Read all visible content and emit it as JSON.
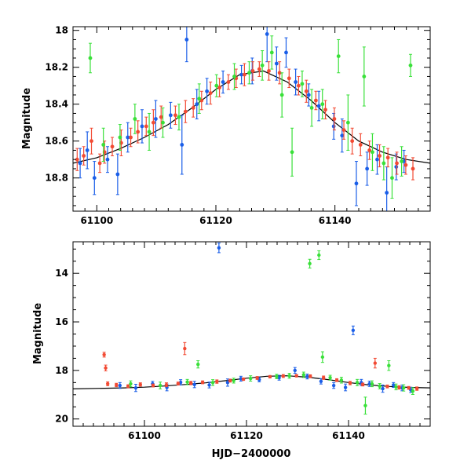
{
  "colors": {
    "blue": "#1a5ee8",
    "red": "#f24a33",
    "green": "#39e039",
    "model": "#000000"
  },
  "chart_data": [
    {
      "type": "scatter",
      "panel": "top",
      "title": "",
      "xlabel": "",
      "ylabel": "Magnitude",
      "xlim": [
        61096,
        61156
      ],
      "ylim": [
        18.98,
        17.98
      ],
      "y_inverted": true,
      "xticks": [
        61100,
        61120,
        61140
      ],
      "xtick_labels": [
        "61100",
        "61120",
        "61140"
      ],
      "yticks": [
        18,
        18.2,
        18.4,
        18.6,
        18.8
      ],
      "ytick_labels": [
        "18",
        "18.2",
        "18.4",
        "18.6",
        "18.8"
      ],
      "model_curve": {
        "x": [
          61096,
          61100,
          61104,
          61108,
          61112,
          61116,
          61120,
          61124,
          61128,
          61132,
          61136,
          61140,
          61144,
          61148,
          61152,
          61156
        ],
        "y": [
          18.72,
          18.69,
          18.64,
          18.58,
          18.51,
          18.42,
          18.32,
          18.24,
          18.22,
          18.28,
          18.38,
          18.5,
          18.6,
          18.66,
          18.7,
          18.72
        ]
      },
      "series": [
        {
          "name": "blue",
          "color_key": "blue",
          "x": [
            61097.2,
            61098.4,
            61099.6,
            61101.8,
            61103.5,
            61105.2,
            61107.6,
            61109.9,
            61112.4,
            61114.3,
            61115.1,
            61116.8,
            61118.5,
            61121.2,
            61124.3,
            61126.1,
            61128.6,
            61130.2,
            61131.8,
            61133.4,
            61135.6,
            61137.3,
            61139.8,
            61141.2,
            61143.6,
            61145.4,
            61147.1,
            61148.7,
            61150.3,
            61151.6
          ],
          "y": [
            18.72,
            18.65,
            18.8,
            18.7,
            18.78,
            18.58,
            18.52,
            18.48,
            18.46,
            18.62,
            18.05,
            18.4,
            18.33,
            18.28,
            18.24,
            18.22,
            18.02,
            18.18,
            18.12,
            18.28,
            18.35,
            18.41,
            18.52,
            18.57,
            18.83,
            18.75,
            18.7,
            18.88,
            18.74,
            18.71
          ],
          "err": [
            0.08,
            0.1,
            0.09,
            0.07,
            0.11,
            0.08,
            0.09,
            0.1,
            0.07,
            0.16,
            0.12,
            0.08,
            0.07,
            0.06,
            0.05,
            0.07,
            0.15,
            0.09,
            0.08,
            0.07,
            0.06,
            0.08,
            0.07,
            0.09,
            0.12,
            0.09,
            0.08,
            0.14,
            0.07,
            0.06
          ]
        },
        {
          "name": "red",
          "color_key": "red",
          "x": [
            61096.7,
            61097.8,
            61099.1,
            61100.5,
            61101.3,
            61102.6,
            61104.1,
            61105.7,
            61106.9,
            61108.3,
            61109.5,
            61110.8,
            61113.2,
            61114.9,
            61116.2,
            61117.6,
            61119.1,
            61120.6,
            61122.1,
            61123.4,
            61124.8,
            61126.2,
            61127.3,
            61128.9,
            61130.7,
            61132.3,
            61133.9,
            61135.2,
            61136.8,
            61138.4,
            61139.9,
            61141.5,
            61142.9,
            61144.3,
            61145.8,
            61147.5,
            61148.9,
            61150.4,
            61151.9,
            61153.1
          ],
          "y": [
            18.7,
            18.68,
            18.6,
            18.72,
            18.66,
            18.63,
            18.61,
            18.58,
            18.55,
            18.52,
            18.5,
            18.47,
            18.46,
            18.44,
            18.42,
            18.38,
            18.34,
            18.31,
            18.28,
            18.26,
            18.24,
            18.22,
            18.21,
            18.22,
            18.23,
            18.26,
            18.3,
            18.33,
            18.38,
            18.43,
            18.48,
            18.54,
            18.6,
            18.62,
            18.65,
            18.68,
            18.69,
            18.72,
            18.73,
            18.75
          ],
          "err": [
            0.06,
            0.05,
            0.07,
            0.05,
            0.06,
            0.05,
            0.07,
            0.05,
            0.06,
            0.05,
            0.07,
            0.06,
            0.05,
            0.06,
            0.05,
            0.05,
            0.06,
            0.05,
            0.04,
            0.05,
            0.06,
            0.05,
            0.04,
            0.05,
            0.06,
            0.05,
            0.05,
            0.06,
            0.05,
            0.05,
            0.06,
            0.05,
            0.07,
            0.06,
            0.05,
            0.06,
            0.05,
            0.06,
            0.05,
            0.06
          ]
        },
        {
          "name": "green",
          "color_key": "green",
          "x": [
            61098.9,
            61101.1,
            61103.9,
            61106.4,
            61108.8,
            61111.1,
            61113.8,
            61117.2,
            61120.1,
            61123.1,
            61125.6,
            61127.8,
            61129.4,
            61131.1,
            61132.8,
            61134.5,
            61136.1,
            61137.9,
            61140.6,
            61142.2,
            61144.9,
            61146.3,
            61148.2,
            61149.6,
            61151.2,
            61152.7
          ],
          "y": [
            18.15,
            18.62,
            18.58,
            18.48,
            18.55,
            18.5,
            18.47,
            18.37,
            18.3,
            18.25,
            18.23,
            18.19,
            18.12,
            18.35,
            18.66,
            18.29,
            18.42,
            18.4,
            18.14,
            18.5,
            18.25,
            18.66,
            18.72,
            18.8,
            18.71,
            18.19
          ],
          "err": [
            0.08,
            0.09,
            0.07,
            0.08,
            0.1,
            0.08,
            0.07,
            0.08,
            0.06,
            0.07,
            0.06,
            0.08,
            0.09,
            0.12,
            0.13,
            0.07,
            0.1,
            0.08,
            0.09,
            0.15,
            0.16,
            0.1,
            0.09,
            0.11,
            0.08,
            0.06
          ]
        }
      ]
    },
    {
      "type": "scatter",
      "panel": "bottom",
      "title": "",
      "xlabel": "HJD−2400000",
      "ylabel": "Magnitude",
      "xlim": [
        61086,
        61156
      ],
      "ylim": [
        20.3,
        12.7
      ],
      "y_inverted": true,
      "xticks": [
        61100,
        61120,
        61140
      ],
      "xtick_labels": [
        "61100",
        "61120",
        "61140"
      ],
      "yticks": [
        14,
        16,
        18,
        20
      ],
      "ytick_labels": [
        "14",
        "16",
        "18",
        "20"
      ],
      "model_curve": {
        "x": [
          61086,
          61096,
          61100,
          61104,
          61108,
          61112,
          61116,
          61120,
          61124,
          61128,
          61132,
          61136,
          61140,
          61144,
          61148,
          61152,
          61156
        ],
        "y": [
          18.76,
          18.72,
          18.69,
          18.64,
          18.58,
          18.51,
          18.42,
          18.32,
          18.24,
          18.22,
          18.28,
          18.38,
          18.5,
          18.6,
          18.66,
          18.7,
          18.72
        ]
      },
      "series": [
        {
          "name": "blue",
          "color_key": "blue",
          "x": [
            61095.2,
            61098.3,
            61101.6,
            61104.4,
            61107.1,
            61109.8,
            61112.7,
            61114.6,
            61116.3,
            61118.9,
            61122.5,
            61126.4,
            61129.5,
            61131.9,
            61134.6,
            61137.1,
            61139.4,
            61140.9,
            61142.5,
            61144.1,
            61146.7,
            61148.8,
            61150.5,
            61152.2
          ],
          "y": [
            18.62,
            18.72,
            18.55,
            18.7,
            18.49,
            18.58,
            18.6,
            12.95,
            18.5,
            18.34,
            18.38,
            18.3,
            18.0,
            18.25,
            18.45,
            18.62,
            18.7,
            16.35,
            18.5,
            18.55,
            18.75,
            18.6,
            18.72,
            18.8
          ],
          "err": [
            0.12,
            0.15,
            0.1,
            0.14,
            0.11,
            0.13,
            0.12,
            0.2,
            0.15,
            0.1,
            0.09,
            0.1,
            0.12,
            0.1,
            0.11,
            0.12,
            0.14,
            0.18,
            0.13,
            0.11,
            0.15,
            0.1,
            0.12,
            0.11
          ]
        },
        {
          "name": "red",
          "color_key": "red",
          "x": [
            61092.1,
            61092.4,
            61092.8,
            61094.5,
            61096.8,
            61099.2,
            61101.7,
            61104.3,
            61106.6,
            61107.9,
            61109.1,
            61111.4,
            61114.2,
            61116.8,
            61119.4,
            61122.1,
            61124.6,
            61127.2,
            61129.8,
            61132.5,
            61135.1,
            61137.7,
            61140.3,
            61142.8,
            61145.2,
            61147.6,
            61149.9,
            61151.8,
            61153.4
          ],
          "y": [
            17.35,
            17.9,
            18.55,
            18.6,
            18.65,
            18.58,
            18.62,
            18.59,
            18.54,
            17.1,
            18.52,
            18.49,
            18.46,
            18.42,
            18.36,
            18.31,
            18.26,
            18.23,
            18.22,
            18.24,
            18.3,
            18.4,
            18.52,
            18.58,
            17.7,
            18.66,
            18.7,
            18.72,
            18.75
          ],
          "err": [
            0.1,
            0.12,
            0.08,
            0.07,
            0.06,
            0.07,
            0.06,
            0.08,
            0.06,
            0.25,
            0.07,
            0.06,
            0.07,
            0.06,
            0.05,
            0.06,
            0.05,
            0.06,
            0.05,
            0.06,
            0.07,
            0.06,
            0.07,
            0.06,
            0.2,
            0.06,
            0.07,
            0.06,
            0.07
          ]
        },
        {
          "name": "green",
          "color_key": "green",
          "x": [
            61097.3,
            61103.1,
            61108.4,
            61110.5,
            61113.4,
            61117.5,
            61120.8,
            61125.9,
            61128.4,
            61131.2,
            61132.4,
            61134.2,
            61134.9,
            61136.4,
            61138.6,
            61141.7,
            61143.3,
            61144.6,
            61146.1,
            61147.9,
            61149.3,
            61150.8,
            61152.6
          ],
          "y": [
            18.55,
            18.62,
            18.48,
            17.75,
            18.5,
            18.42,
            18.33,
            18.25,
            18.22,
            18.18,
            13.6,
            13.25,
            17.45,
            18.3,
            18.4,
            18.5,
            19.45,
            18.55,
            18.65,
            17.8,
            18.68,
            18.72,
            18.85
          ],
          "err": [
            0.12,
            0.14,
            0.11,
            0.15,
            0.12,
            0.1,
            0.11,
            0.09,
            0.1,
            0.11,
            0.18,
            0.18,
            0.22,
            0.1,
            0.12,
            0.13,
            0.35,
            0.12,
            0.11,
            0.2,
            0.12,
            0.13,
            0.14
          ]
        }
      ]
    }
  ]
}
